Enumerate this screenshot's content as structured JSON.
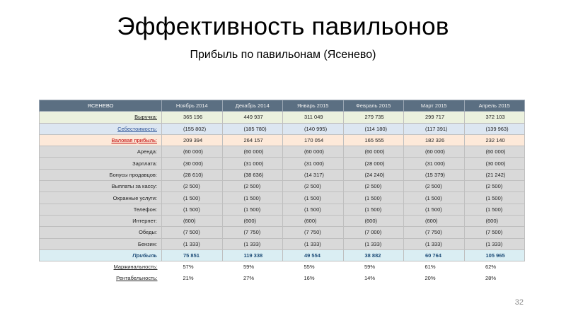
{
  "title": "Эффективность павильонов",
  "subtitle": "Прибыль по павильонам (Ясенево)",
  "page_number": "32",
  "table": {
    "corner_label": "ЯСЕНЕВО",
    "columns": [
      "Ноябрь 2014",
      "Декабрь 2014",
      "Январь 2015",
      "Февраль 2015",
      "Март 2015",
      "Апрель 2015"
    ],
    "rows": [
      {
        "label": "Выручка:",
        "values": [
          "365 196",
          "449 937",
          "311 049",
          "279 735",
          "299 717",
          "372 103"
        ]
      },
      {
        "label": "Себестоимость:",
        "values": [
          "(155 802)",
          "(185 780)",
          "(140 995)",
          "(114 180)",
          "(117 391)",
          "(139 963)"
        ]
      },
      {
        "label": "Валовая прибыль:",
        "values": [
          "209 394",
          "264 157",
          "170 054",
          "165 555",
          "182 326",
          "232 140"
        ]
      },
      {
        "label": "Аренда:",
        "values": [
          "(60 000)",
          "(60 000)",
          "(60 000)",
          "(60 000)",
          "(60 000)",
          "(60 000)"
        ]
      },
      {
        "label": "Зарплата:",
        "values": [
          "(30 000)",
          "(31 000)",
          "(31 000)",
          "(28 000)",
          "(31 000)",
          "(30 000)"
        ]
      },
      {
        "label": "Бонусы продавцов:",
        "values": [
          "(28 610)",
          "(38 636)",
          "(14 317)",
          "(24 240)",
          "(15 379)",
          "(21 242)"
        ]
      },
      {
        "label": "Выплаты за кассу:",
        "values": [
          "(2 500)",
          "(2 500)",
          "(2 500)",
          "(2 500)",
          "(2 500)",
          "(2 500)"
        ]
      },
      {
        "label": "Охранные услуги:",
        "values": [
          "(1 500)",
          "(1 500)",
          "(1 500)",
          "(1 500)",
          "(1 500)",
          "(1 500)"
        ]
      },
      {
        "label": "Телефон:",
        "values": [
          "(1 500)",
          "(1 500)",
          "(1 500)",
          "(1 500)",
          "(1 500)",
          "(1 500)"
        ]
      },
      {
        "label": "Интернет:",
        "values": [
          "(600)",
          "(600)",
          "(600)",
          "(600)",
          "(600)",
          "(600)"
        ]
      },
      {
        "label": "Обеды:",
        "values": [
          "(7 500)",
          "(7 750)",
          "(7 750)",
          "(7 000)",
          "(7 750)",
          "(7 500)"
        ]
      },
      {
        "label": "Бензин:",
        "values": [
          "(1 333)",
          "(1 333)",
          "(1 333)",
          "(1 333)",
          "(1 333)",
          "(1 333)"
        ]
      },
      {
        "label": "Прибыль",
        "values": [
          "75 851",
          "119 338",
          "49 554",
          "38 882",
          "60 764",
          "105 965"
        ]
      },
      {
        "label": "Маржинальность:",
        "values": [
          "57%",
          "59%",
          "55%",
          "59%",
          "61%",
          "62%"
        ]
      },
      {
        "label": "Рентабельность:",
        "values": [
          "21%",
          "27%",
          "16%",
          "14%",
          "20%",
          "28%"
        ]
      }
    ]
  },
  "colors": {
    "header_bg": "#5b6f82",
    "revenue_bg": "#ebf1de",
    "cost_bg": "#dce6f1",
    "gross_bg": "#fde9d9",
    "expense_bg": "#d9d9d9",
    "profit_bg": "#daeef3"
  }
}
